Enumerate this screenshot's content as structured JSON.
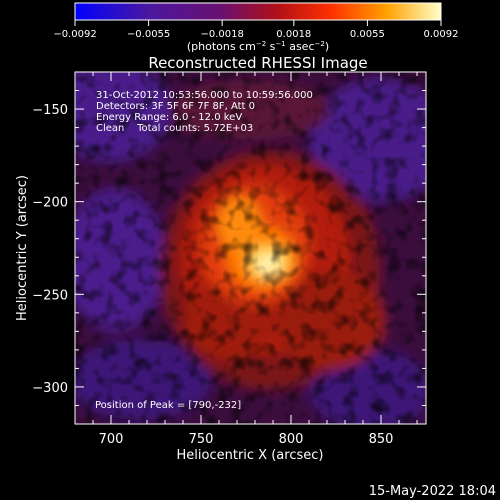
{
  "colorbar": {
    "ticks": [
      -0.0092,
      -0.0055,
      -0.0018,
      0.0018,
      0.0055,
      0.0092
    ],
    "tick_labels": [
      "-0.0092",
      "-0.0055",
      "-0.0018",
      "0.0018",
      "0.0055",
      "0.0092"
    ],
    "unit_prefix": "(photons cm",
    "unit_exp1": "-2",
    "unit_mid": " s",
    "unit_exp2": "-1",
    "unit_mid2": " asec",
    "unit_exp3": "-2",
    "unit_suffix": ")"
  },
  "chart_data": {
    "type": "heatmap",
    "title": "Reconstructed RHESSI Image",
    "xlabel": "Heliocentric X (arcsec)",
    "ylabel": "Heliocentric Y (arcsec)",
    "xlim": [
      680,
      875
    ],
    "ylim": [
      -320,
      -130
    ],
    "xticks": [
      700,
      750,
      800,
      850
    ],
    "yticks": [
      -150,
      -200,
      -250,
      -300
    ],
    "value_range": [
      -0.0092,
      0.0092
    ],
    "peak": [
      790,
      -232
    ],
    "annotations": [
      "31-Oct-2012 10:53:56.000 to 10:59:56.000",
      "Detectors: 3F 5F 6F 7F 8F, Att 0",
      "Energy Range: 6.0 - 12.0 keV",
      "Clean    Total counts: 5.72E+03"
    ],
    "peak_label": "Position of Peak = [790,-232]"
  },
  "footer": {
    "timestamp": "15-May-2022 18:04"
  }
}
